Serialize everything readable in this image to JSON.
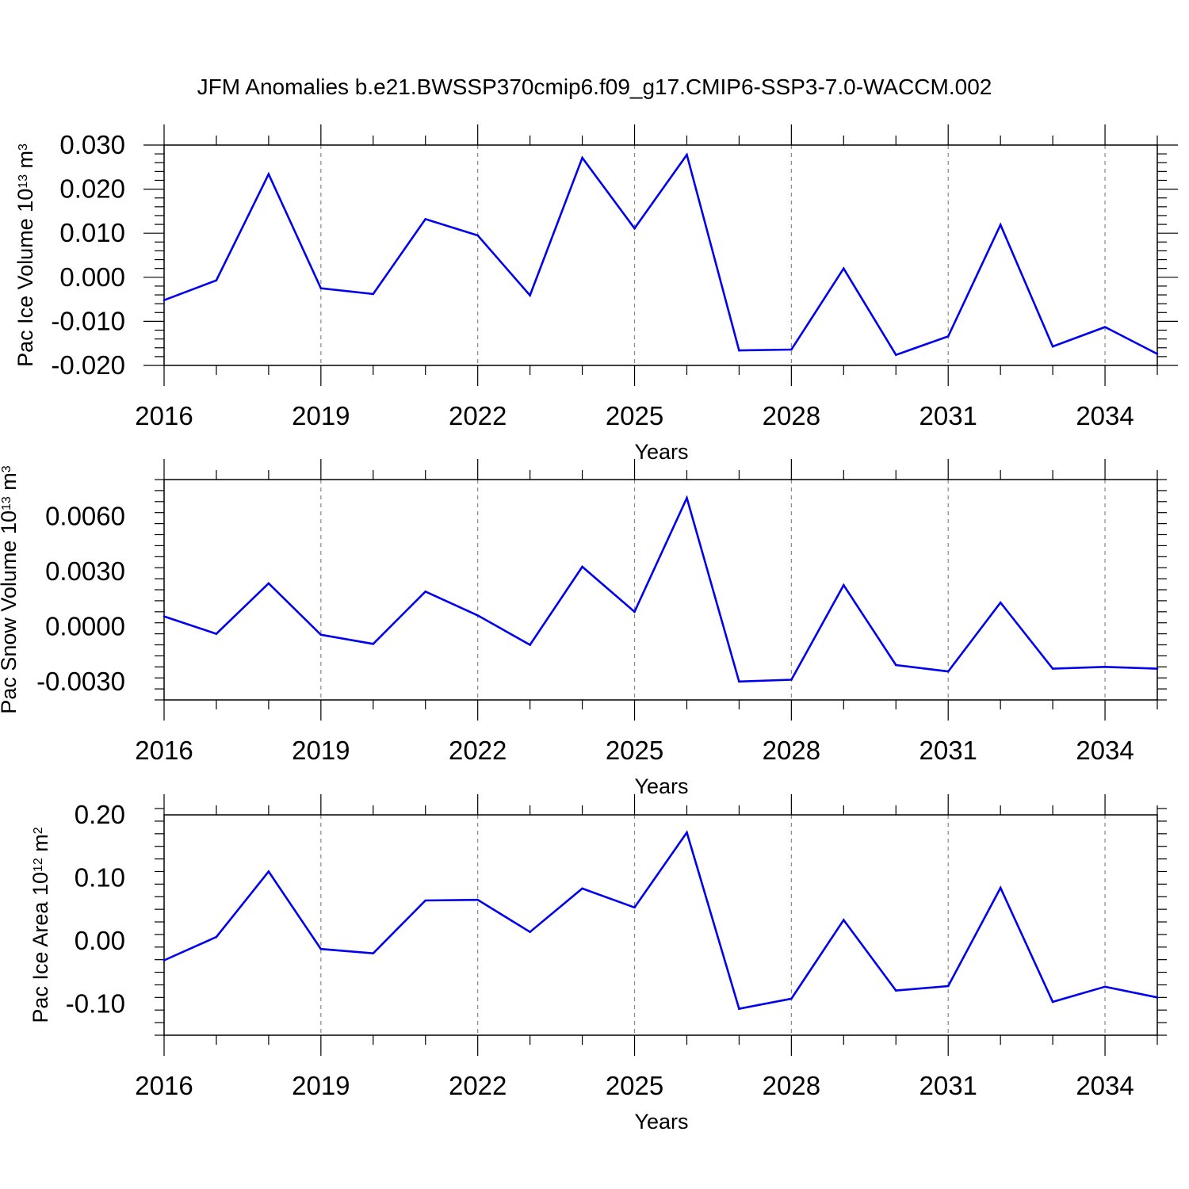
{
  "figure": {
    "title": "JFM Anomalies b.e21.BWSSP370cmip6.f09_g17.CMIP6-SSP3-7.0-WACCM.002",
    "line_color": "#0000ee",
    "grid_color": "#888888"
  },
  "chart_data": [
    {
      "type": "line",
      "xlabel": "Years",
      "ylabel": "Pac Ice Volume 10",
      "ylabel_exp": "13",
      "ylabel_unit": "m",
      "ylabel_unit_exp": "3",
      "x": [
        2016,
        2017,
        2018,
        2019,
        2020,
        2021,
        2022,
        2023,
        2024,
        2025,
        2026,
        2027,
        2028,
        2029,
        2030,
        2031,
        2032,
        2033,
        2034,
        2035
      ],
      "y": [
        -0.0052,
        -0.0007,
        0.0234,
        -0.0025,
        -0.0038,
        0.0132,
        0.0095,
        -0.0041,
        0.0271,
        0.0111,
        0.0278,
        -0.0166,
        -0.0164,
        0.002,
        -0.0176,
        -0.0134,
        0.0119,
        -0.0157,
        -0.0113,
        -0.0174
      ],
      "xlim": [
        2016,
        2035
      ],
      "ylim": [
        -0.02,
        0.03
      ],
      "xticks": [
        2016,
        2019,
        2022,
        2025,
        2028,
        2031,
        2034
      ],
      "xtick_labels": [
        "2016",
        "2019",
        "2022",
        "2025",
        "2028",
        "2031",
        "2034"
      ],
      "yticks": [
        -0.02,
        -0.01,
        0.0,
        0.01,
        0.02,
        0.03
      ],
      "ytick_labels": [
        "-0.020",
        "-0.010",
        "0.000",
        "0.010",
        "0.020",
        "0.030"
      ],
      "yminor_step": 0.002,
      "grid": "vertical-dashed"
    },
    {
      "type": "line",
      "xlabel": "Years",
      "ylabel": "Pac Snow Volume 10",
      "ylabel_exp": "13",
      "ylabel_unit": "m",
      "ylabel_unit_exp": "3",
      "x": [
        2016,
        2017,
        2018,
        2019,
        2020,
        2021,
        2022,
        2023,
        2024,
        2025,
        2026,
        2027,
        2028,
        2029,
        2030,
        2031,
        2032,
        2033,
        2034,
        2035
      ],
      "y": [
        0.00055,
        -0.0004,
        0.00235,
        -0.00045,
        -0.00095,
        0.0019,
        0.0006,
        -0.001,
        0.00325,
        0.0008,
        0.007,
        -0.003,
        -0.0029,
        0.00225,
        -0.0021,
        -0.00245,
        0.0013,
        -0.0023,
        -0.0022,
        -0.0023
      ],
      "xlim": [
        2016,
        2035
      ],
      "ylim": [
        -0.004,
        0.008
      ],
      "xticks": [
        2016,
        2019,
        2022,
        2025,
        2028,
        2031,
        2034
      ],
      "xtick_labels": [
        "2016",
        "2019",
        "2022",
        "2025",
        "2028",
        "2031",
        "2034"
      ],
      "yticks": [
        -0.003,
        0.0,
        0.003,
        0.006
      ],
      "ytick_labels": [
        "-0.0030",
        "0.0000",
        "0.0030",
        "0.0060"
      ],
      "yminor_step": 0.0006,
      "grid": "vertical-dashed"
    },
    {
      "type": "line",
      "xlabel": "Years",
      "ylabel": "Pac Ice Area 10",
      "ylabel_exp": "12",
      "ylabel_unit": "m",
      "ylabel_unit_exp": "2",
      "x": [
        2016,
        2017,
        2018,
        2019,
        2020,
        2021,
        2022,
        2023,
        2024,
        2025,
        2026,
        2027,
        2028,
        2029,
        2030,
        2031,
        2032,
        2033,
        2034,
        2035
      ],
      "y": [
        -0.031,
        0.006,
        0.11,
        -0.013,
        -0.02,
        0.064,
        0.065,
        0.014,
        0.083,
        0.053,
        0.172,
        -0.108,
        -0.092,
        0.033,
        -0.079,
        -0.072,
        0.084,
        -0.097,
        -0.073,
        -0.09
      ],
      "xlim": [
        2016,
        2035
      ],
      "ylim": [
        -0.15,
        0.2
      ],
      "xticks": [
        2016,
        2019,
        2022,
        2025,
        2028,
        2031,
        2034
      ],
      "xtick_labels": [
        "2016",
        "2019",
        "2022",
        "2025",
        "2028",
        "2031",
        "2034"
      ],
      "yticks": [
        -0.1,
        0.0,
        0.1,
        0.2
      ],
      "ytick_labels": [
        "-0.10",
        "0.00",
        "0.10",
        "0.20"
      ],
      "yminor_step": 0.02,
      "grid": "vertical-dashed"
    }
  ]
}
